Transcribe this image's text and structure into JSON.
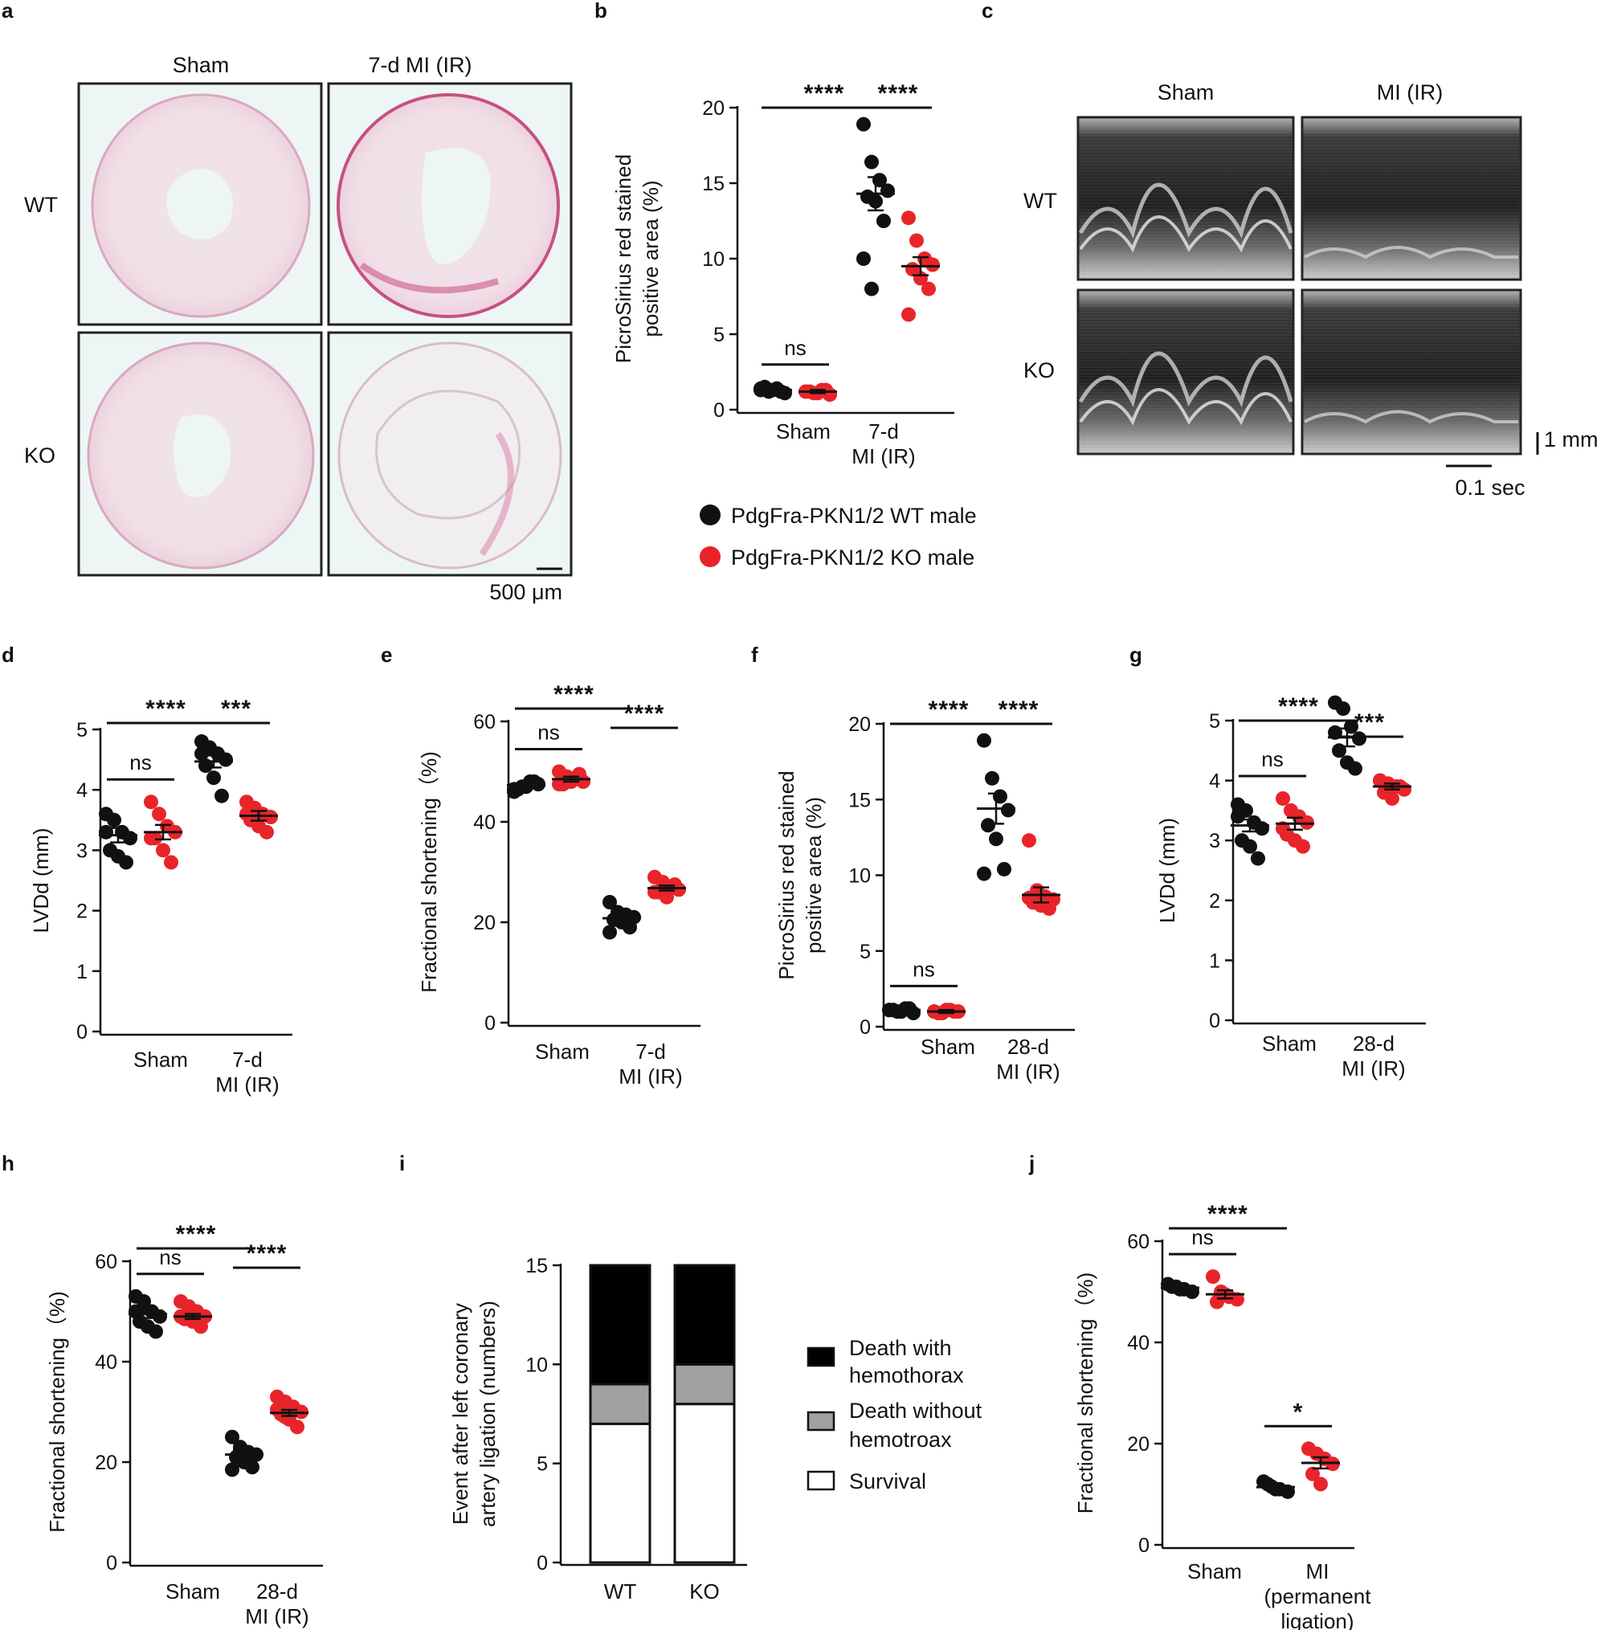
{
  "panel_letters": [
    "a",
    "b",
    "c",
    "d",
    "e",
    "f",
    "g",
    "h",
    "i",
    "j"
  ],
  "panel_a": {
    "col_labels": [
      "Sham",
      "7-d MI (IR)"
    ],
    "row_labels": [
      "WT",
      "KO"
    ],
    "scale_bar": "500 μm"
  },
  "panel_c": {
    "col_labels": [
      "Sham",
      "MI (IR)"
    ],
    "row_labels": [
      "WT",
      "KO"
    ],
    "scale_y": "1 mm",
    "scale_x": "0.1 sec"
  },
  "legend": {
    "wt": "PdgFra-PKN1/2 WT male",
    "ko": "PdgFra-PKN1/2 KO male",
    "wt_color": "#111111",
    "ko_color": "#e8242a"
  },
  "panel_i_legend": {
    "items": [
      "Death with hemothorax",
      "Death without hemotroax",
      "Survival"
    ],
    "colors": [
      "#000000",
      "#a0a0a0",
      "#ffffff"
    ]
  },
  "chart_data": [
    {
      "id": "b",
      "type": "scatter",
      "ylabel": "PicroSirius red stained positive area (%)",
      "ylim": [
        0,
        20
      ],
      "yticks": [
        0,
        5,
        10,
        15,
        20
      ],
      "categories": [
        "Sham",
        "7-d MI (IR)"
      ],
      "series": [
        {
          "name": "PdgFra-PKN1/2 WT male",
          "values": [
            [
              1.3,
              1.2,
              1.4,
              1.1,
              1.5,
              1.3,
              1.2,
              1.4
            ],
            [
              18.9,
              16.4,
              15.2,
              14.5,
              14.1,
              13.8,
              12.5,
              10.0,
              8.0
            ]
          ],
          "mean": [
            1.3,
            14.3
          ],
          "sem": [
            0.1,
            1.1
          ]
        },
        {
          "name": "PdgFra-PKN1/2 KO male",
          "values": [
            [
              1.2,
              1.1,
              1.3,
              1.0,
              1.2,
              1.1,
              1.3,
              1.2
            ],
            [
              12.7,
              11.2,
              10.0,
              9.6,
              9.3,
              8.7,
              8.0,
              6.3
            ]
          ],
          "mean": [
            1.2,
            9.5
          ],
          "sem": [
            0.1,
            0.6
          ]
        }
      ],
      "comparisons": [
        {
          "a": [
            0,
            0
          ],
          "b": [
            0,
            1
          ],
          "label": "ns"
        },
        {
          "a": [
            0,
            0
          ],
          "b": [
            1,
            0
          ],
          "label": "****"
        },
        {
          "a": [
            1,
            0
          ],
          "b": [
            1,
            1
          ],
          "label": "****"
        }
      ]
    },
    {
      "id": "d",
      "type": "scatter",
      "ylabel": "LVDd (mm)",
      "ylim": [
        0,
        5
      ],
      "yticks": [
        0,
        1,
        2,
        3,
        4,
        5
      ],
      "categories": [
        "Sham",
        "7-d MI (IR)"
      ],
      "series": [
        {
          "name": "PdgFra-PKN1/2 WT male",
          "values": [
            [
              3.6,
              3.5,
              3.3,
              3.2,
              3.0,
              2.9,
              2.8,
              3.3
            ],
            [
              4.8,
              4.7,
              4.6,
              4.5,
              4.4,
              4.2,
              3.9,
              4.6
            ]
          ],
          "mean": [
            3.25,
            4.47
          ],
          "sem": [
            0.12,
            0.1
          ]
        },
        {
          "name": "PdgFra-PKN1/2 KO male",
          "values": [
            [
              3.8,
              3.6,
              3.4,
              3.3,
              3.2,
              3.0,
              2.8,
              3.2
            ],
            [
              3.8,
              3.7,
              3.6,
              3.55,
              3.5,
              3.4,
              3.3,
              3.6
            ]
          ],
          "mean": [
            3.3,
            3.57
          ],
          "sem": [
            0.12,
            0.08
          ]
        }
      ],
      "comparisons": [
        {
          "a": [
            0,
            0
          ],
          "b": [
            0,
            1
          ],
          "label": "ns"
        },
        {
          "a": [
            0,
            0
          ],
          "b": [
            1,
            0
          ],
          "label": "****"
        },
        {
          "a": [
            1,
            0
          ],
          "b": [
            1,
            1
          ],
          "label": "***"
        }
      ]
    },
    {
      "id": "e",
      "type": "scatter",
      "ylabel": "Fractional shortening（%)",
      "ylim": [
        0,
        60
      ],
      "yticks": [
        0,
        20,
        40,
        60
      ],
      "categories": [
        "Sham",
        "7-d MI (IR)"
      ],
      "series": [
        {
          "name": "PdgFra-PKN1/2 WT male",
          "values": [
            [
              46,
              47,
              48,
              47.5,
              46.5,
              47,
              48,
              46.5
            ],
            [
              24,
              22,
              21.5,
              21,
              20.5,
              20,
              19,
              18
            ]
          ],
          "mean": [
            47.3,
            20.8
          ],
          "sem": [
            0.5,
            0.7
          ]
        },
        {
          "name": "PdgFra-PKN1/2 KO male",
          "values": [
            [
              50,
              49,
              48.5,
              48,
              47.5,
              48,
              49.5,
              47.5
            ],
            [
              29,
              28,
              27,
              26.5,
              26,
              25,
              27.5,
              26
            ]
          ],
          "mean": [
            48.5,
            26.8
          ],
          "sem": [
            0.5,
            0.5
          ]
        }
      ],
      "comparisons": [
        {
          "a": [
            0,
            0
          ],
          "b": [
            0,
            1
          ],
          "label": "ns"
        },
        {
          "a": [
            0,
            0
          ],
          "b": [
            1,
            0
          ],
          "label": "****"
        },
        {
          "a": [
            1,
            0
          ],
          "b": [
            1,
            1
          ],
          "label": "****"
        }
      ]
    },
    {
      "id": "f",
      "type": "scatter",
      "ylabel": "PicroSirius red stained positive area (%)",
      "ylim": [
        0,
        20
      ],
      "yticks": [
        0,
        5,
        10,
        15,
        20
      ],
      "categories": [
        "Sham",
        "28-d MI (IR)"
      ],
      "series": [
        {
          "name": "PdgFra-PKN1/2 WT male",
          "values": [
            [
              1.1,
              1.0,
              1.2,
              0.9,
              1.1,
              1.0,
              1.2,
              1.1
            ],
            [
              18.9,
              16.4,
              15.2,
              14.3,
              13.3,
              12.4,
              10.4,
              10.1
            ]
          ],
          "mean": [
            1.1,
            14.4
          ],
          "sem": [
            0.1,
            1.0
          ]
        },
        {
          "name": "PdgFra-PKN1/2 KO male",
          "values": [
            [
              1.0,
              0.9,
              1.1,
              1.0,
              0.9,
              1.1,
              1.0,
              1.0
            ],
            [
              12.3,
              9.0,
              8.6,
              8.4,
              8.2,
              8.0,
              7.8,
              8.5
            ]
          ],
          "mean": [
            1.0,
            8.7
          ],
          "sem": [
            0.1,
            0.5
          ]
        }
      ],
      "comparisons": [
        {
          "a": [
            0,
            0
          ],
          "b": [
            0,
            1
          ],
          "label": "ns"
        },
        {
          "a": [
            0,
            0
          ],
          "b": [
            1,
            0
          ],
          "label": "****"
        },
        {
          "a": [
            1,
            0
          ],
          "b": [
            1,
            1
          ],
          "label": "****"
        }
      ]
    },
    {
      "id": "g",
      "type": "scatter",
      "ylabel": "LVDd (mm)",
      "ylim": [
        0,
        5.5
      ],
      "yticks": [
        0,
        1,
        2,
        3,
        4,
        5
      ],
      "categories": [
        "Sham",
        "28-d MI (IR)"
      ],
      "series": [
        {
          "name": "PdgFra-PKN1/2 WT male",
          "values": [
            [
              3.6,
              3.5,
              3.3,
              3.2,
              3.0,
              2.9,
              2.7,
              3.4
            ],
            [
              5.3,
              5.2,
              4.9,
              4.7,
              4.5,
              4.3,
              4.2,
              4.8
            ]
          ],
          "mean": [
            3.25,
            4.72
          ],
          "sem": [
            0.1,
            0.15
          ]
        },
        {
          "name": "PdgFra-PKN1/2 KO male",
          "values": [
            [
              3.7,
              3.5,
              3.4,
              3.3,
              3.1,
              3.0,
              2.9,
              3.2
            ],
            [
              4.0,
              3.95,
              3.9,
              3.85,
              3.8,
              3.7,
              3.9,
              4.0
            ]
          ],
          "mean": [
            3.28,
            3.9
          ],
          "sem": [
            0.1,
            0.05
          ]
        }
      ],
      "comparisons": [
        {
          "a": [
            0,
            0
          ],
          "b": [
            0,
            1
          ],
          "label": "ns"
        },
        {
          "a": [
            0,
            0
          ],
          "b": [
            1,
            0
          ],
          "label": "****"
        },
        {
          "a": [
            1,
            0
          ],
          "b": [
            1,
            1
          ],
          "label": "***"
        }
      ]
    },
    {
      "id": "h",
      "type": "scatter",
      "ylabel": "Fractional shortening（%)",
      "ylim": [
        0,
        60
      ],
      "yticks": [
        0,
        20,
        40,
        60
      ],
      "categories": [
        "Sham",
        "28-d MI (IR)"
      ],
      "series": [
        {
          "name": "PdgFra-PKN1/2 WT male",
          "values": [
            [
              53,
              51,
              50,
              49,
              48,
              47,
              46,
              50,
              52
            ],
            [
              25,
              23,
              22,
              21.5,
              21,
              20,
              19,
              18.5,
              22.5
            ]
          ],
          "mean": [
            49.5,
            21.5
          ],
          "sem": [
            0.8,
            0.8
          ]
        },
        {
          "name": "PdgFra-PKN1/2 KO male",
          "values": [
            [
              52,
              51,
              50,
              49,
              48.5,
              48,
              47,
              49,
              50
            ],
            [
              33,
              32,
              31,
              30,
              29.5,
              28.5,
              27,
              30.5,
              29
            ]
          ],
          "mean": [
            49.0,
            29.8
          ],
          "sem": [
            0.5,
            0.6
          ]
        }
      ],
      "comparisons": [
        {
          "a": [
            0,
            0
          ],
          "b": [
            0,
            1
          ],
          "label": "ns"
        },
        {
          "a": [
            0,
            0
          ],
          "b": [
            1,
            0
          ],
          "label": "****"
        },
        {
          "a": [
            1,
            0
          ],
          "b": [
            1,
            1
          ],
          "label": "****"
        }
      ]
    },
    {
      "id": "i",
      "type": "bar",
      "stacked": true,
      "ylabel": "Event after left coronary artery ligation (numbers)",
      "ylim": [
        0,
        15
      ],
      "yticks": [
        0,
        5,
        10,
        15
      ],
      "categories": [
        "WT",
        "KO"
      ],
      "series": [
        {
          "name": "Survival",
          "values": [
            7,
            8
          ]
        },
        {
          "name": "Death without hemotroax",
          "values": [
            2,
            2
          ]
        },
        {
          "name": "Death with hemothorax",
          "values": [
            6,
            5
          ]
        }
      ]
    },
    {
      "id": "j",
      "type": "scatter",
      "ylabel": "Fractional shortening（%)",
      "ylim": [
        0,
        60
      ],
      "yticks": [
        0,
        20,
        40,
        60
      ],
      "categories": [
        "Sham",
        "MI (permanent ligation)"
      ],
      "series": [
        {
          "name": "PdgFra-PKN1/2 WT male",
          "values": [
            [
              51.5,
              51,
              50.5,
              50,
              51,
              50.5
            ],
            [
              12.5,
              11.5,
              11,
              10.5,
              12,
              11
            ]
          ],
          "mean": [
            50.8,
            11.4
          ],
          "sem": [
            0.3,
            0.4
          ]
        },
        {
          "name": "PdgFra-PKN1/2 KO male",
          "values": [
            [
              53,
              50,
              49,
              48.5,
              48,
              49.5
            ],
            [
              19,
              18,
              17,
              16,
              14,
              12
            ]
          ],
          "mean": [
            49.5,
            16.2
          ],
          "sem": [
            0.8,
            1.1
          ]
        }
      ],
      "comparisons": [
        {
          "a": [
            0,
            0
          ],
          "b": [
            0,
            1
          ],
          "label": "ns"
        },
        {
          "a": [
            0,
            0
          ],
          "b": [
            1,
            0
          ],
          "label": "****"
        },
        {
          "a": [
            1,
            0
          ],
          "b": [
            1,
            1
          ],
          "label": "*"
        }
      ]
    }
  ]
}
